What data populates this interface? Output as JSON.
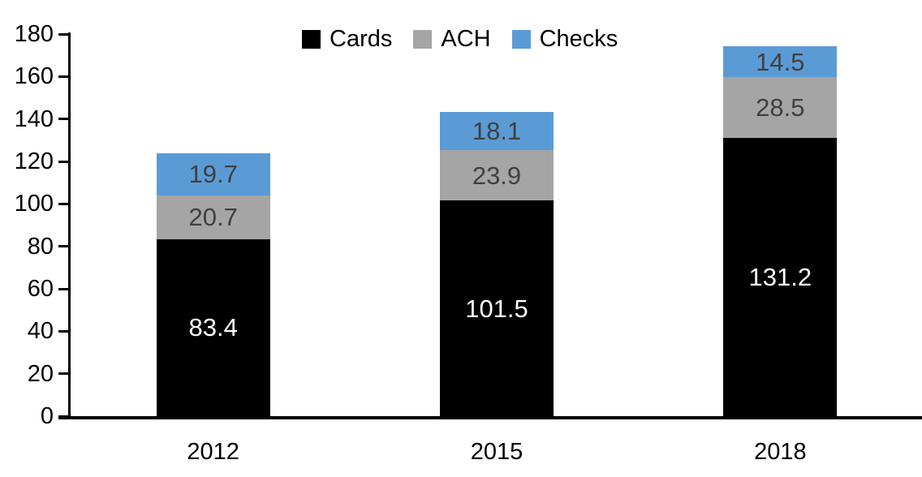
{
  "chart_data": {
    "type": "bar",
    "stacked": true,
    "title": "",
    "xlabel": "",
    "ylabel": "",
    "categories": [
      "2012",
      "2015",
      "2018"
    ],
    "series": [
      {
        "name": "Cards",
        "color": "#000000",
        "label_color": "#ffffff",
        "values": [
          83.4,
          101.5,
          131.2
        ]
      },
      {
        "name": "ACH",
        "color": "#a5a5a5",
        "label_color": "#404040",
        "values": [
          20.7,
          23.9,
          28.5
        ]
      },
      {
        "name": "Checks",
        "color": "#5b9bd5",
        "label_color": "#404040",
        "values": [
          19.7,
          18.1,
          14.5
        ]
      }
    ],
    "totals": [
      123.8,
      143.5,
      174.2
    ],
    "ylim": [
      0,
      180
    ],
    "ytick_step": 20,
    "yticks": [
      0,
      20,
      40,
      60,
      80,
      100,
      120,
      140,
      160,
      180
    ],
    "legend_position": "top",
    "legend_order": [
      "Cards",
      "ACH",
      "Checks"
    ],
    "grid": false,
    "axis_color": "#000000",
    "background_color": "#ffffff"
  }
}
